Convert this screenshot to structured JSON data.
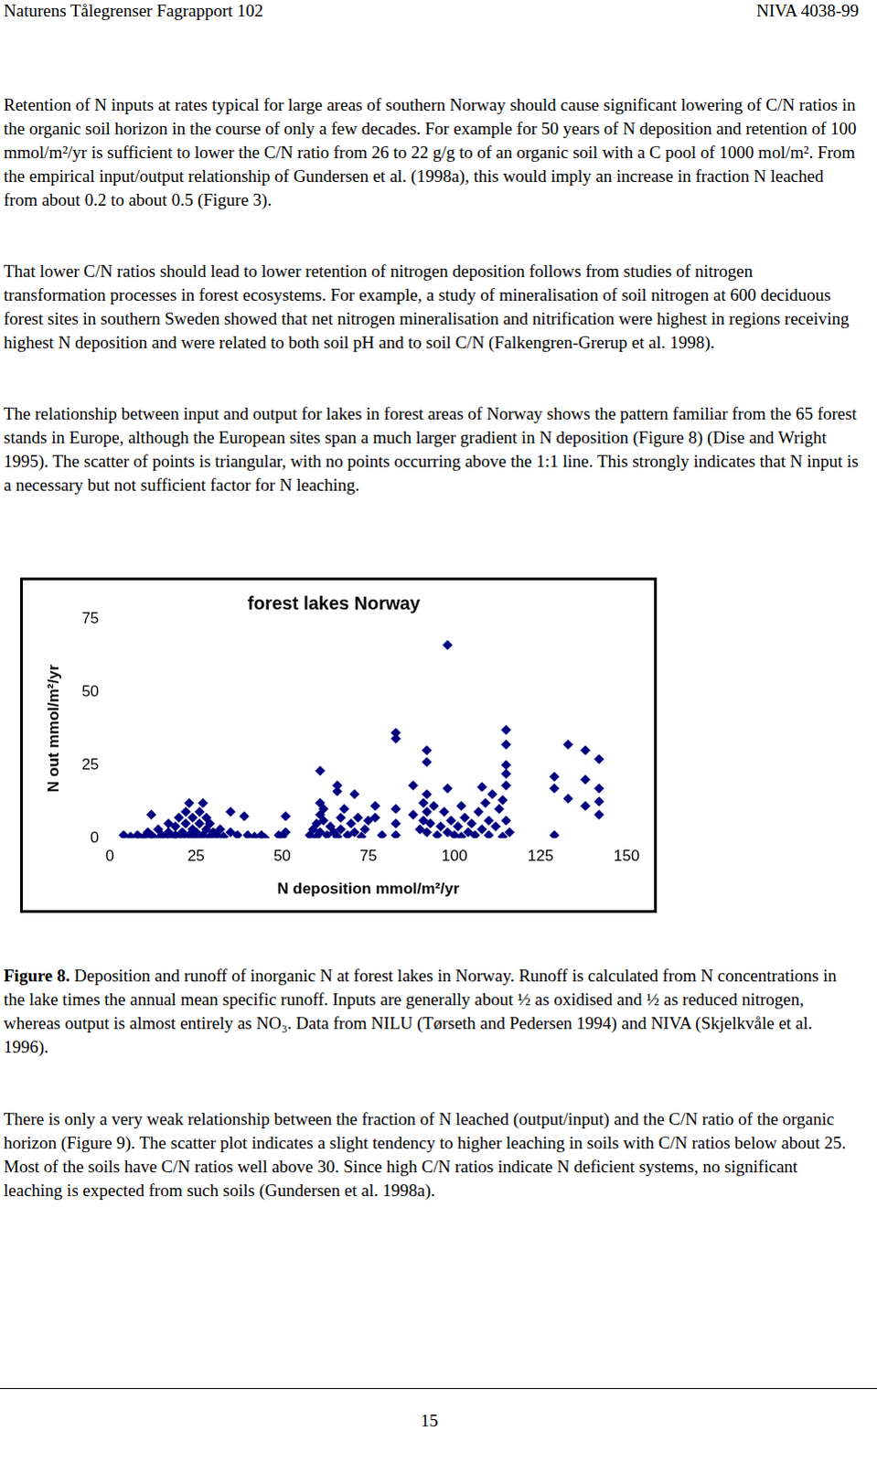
{
  "header": {
    "left": "Naturens Tålegrenser Fagrapport 102",
    "right": "NIVA 4038-99"
  },
  "paragraphs_before": [
    "Retention of N inputs at rates typical for large areas of southern Norway should cause significant lowering of C/N ratios in the organic soil horizon in the course of only a few decades. For example for 50 years of N deposition and retention of 100 mmol/m²/yr is sufficient to lower the C/N ratio from 26 to 22 g/g to of an organic soil with a C pool of 1000 mol/m². From the empirical input/output relationship of Gundersen et al. (1998a), this would imply an increase in fraction N leached from about 0.2 to about 0.5 (Figure 3).",
    "That lower C/N ratios should lead to lower retention of nitrogen deposition follows from studies of nitrogen transformation processes in forest ecosystems. For example, a study of mineralisation of soil nitrogen at 600 deciduous forest sites in southern Sweden showed that net nitrogen mineralisation and nitrification were highest in regions receiving highest N deposition and were related to both soil pH and to soil C/N (Falkengren-Grerup et al. 1998).",
    "The relationship between input and output for lakes in forest areas of Norway shows the pattern familiar from the 65 forest stands in Europe, although the European sites span a much larger gradient in N deposition (Figure 8) (Dise and Wright 1995). The scatter of points is triangular, with no points occurring above the 1:1 line. This strongly indicates that N input is a necessary but not sufficient factor for N leaching."
  ],
  "chart_data": {
    "type": "scatter",
    "title": "forest lakes Norway",
    "x_label": "N deposition mmol/m²/yr",
    "y_label": "N out mmol/m²/yr",
    "xlim": [
      0,
      150
    ],
    "xticks": [
      0,
      25,
      50,
      75,
      100,
      125,
      150
    ],
    "ylim": [
      0,
      75
    ],
    "yticks": [
      0,
      25,
      50,
      75
    ],
    "grid": false,
    "color": "#000080",
    "marker": "diamond",
    "x": [
      4,
      6,
      8,
      9,
      10,
      11,
      12,
      12,
      13,
      14,
      15,
      16,
      17,
      17,
      18,
      19,
      19,
      20,
      21,
      21,
      22,
      22,
      23,
      23,
      24,
      24,
      25,
      25,
      26,
      26,
      27,
      27,
      28,
      28,
      29,
      29,
      30,
      31,
      32,
      33,
      35,
      35,
      37,
      39,
      40,
      42,
      44,
      45,
      49,
      50,
      51,
      51,
      58,
      59,
      60,
      60,
      61,
      61,
      61,
      61,
      62,
      62,
      63,
      64,
      65,
      66,
      66,
      66,
      67,
      67,
      68,
      69,
      70,
      71,
      71,
      72,
      73,
      74,
      75,
      77,
      77,
      79,
      83,
      83,
      83,
      83,
      83,
      88,
      88,
      90,
      91,
      91,
      92,
      92,
      92,
      92,
      92,
      93,
      94,
      95,
      96,
      97,
      98,
      98,
      98,
      99,
      100,
      101,
      102,
      102,
      103,
      104,
      105,
      106,
      107,
      108,
      108,
      109,
      110,
      110,
      111,
      112,
      113,
      114,
      114,
      115,
      115,
      115,
      115,
      115,
      115,
      116,
      129,
      129,
      129,
      133,
      133,
      138,
      138,
      138,
      142,
      142,
      142,
      142
    ],
    "values": [
      1,
      0.5,
      1,
      0,
      0.5,
      2,
      8,
      1,
      0,
      3,
      1,
      0.5,
      2,
      5,
      0,
      1,
      4,
      7,
      2,
      0.5,
      9,
      5,
      1,
      12,
      3,
      7,
      0,
      2,
      5,
      9,
      12,
      1,
      3,
      7,
      0.5,
      5,
      2,
      1,
      3,
      0.5,
      9,
      2,
      1,
      7.5,
      1,
      0.5,
      1,
      0,
      1,
      0.5,
      7.5,
      2,
      1,
      3,
      0.5,
      5,
      23,
      8,
      12,
      2,
      10,
      6,
      1,
      4,
      2,
      18,
      16,
      0.5,
      7,
      3,
      10,
      1,
      5,
      15,
      2,
      7,
      0.5,
      3,
      6,
      11,
      7,
      1,
      36,
      34,
      10,
      5,
      1,
      18,
      8,
      3,
      12,
      6,
      30,
      26,
      15,
      9,
      2,
      5,
      11,
      1,
      4,
      9,
      66,
      17,
      2,
      6,
      1,
      4,
      11,
      0.5,
      7,
      2,
      5,
      1,
      9,
      17.5,
      3,
      12,
      6,
      1,
      15,
      4,
      10,
      0.5,
      13,
      25,
      37,
      32,
      22,
      18,
      6,
      2,
      21,
      17,
      1,
      32,
      13.5,
      30,
      20,
      11,
      27,
      17,
      12.5,
      8
    ]
  },
  "caption": {
    "label": "Figure 8.",
    "text": "Deposition and runoff of inorganic N at forest lakes in Norway. Runoff is calculated from N concentrations in the lake times the annual mean specific runoff. Inputs are generally about ½ as oxidised and ½ as reduced nitrogen, whereas output is almost entirely as NO₃. Data from NILU (Tørseth and Pedersen 1994) and NIVA (Skjelkvåle et al. 1996)."
  },
  "paragraphs_after": [
    "There is only a very weak relationship between the fraction of N leached (output/input) and the C/N ratio of the organic horizon (Figure 9). The scatter plot indicates a slight tendency to higher leaching in soils with C/N ratios below about 25. Most of the soils have C/N ratios well above 30. Since high C/N ratios indicate N deficient systems, no significant leaching is expected from such soils (Gundersen et al. 1998a)."
  ],
  "page_number": "15"
}
